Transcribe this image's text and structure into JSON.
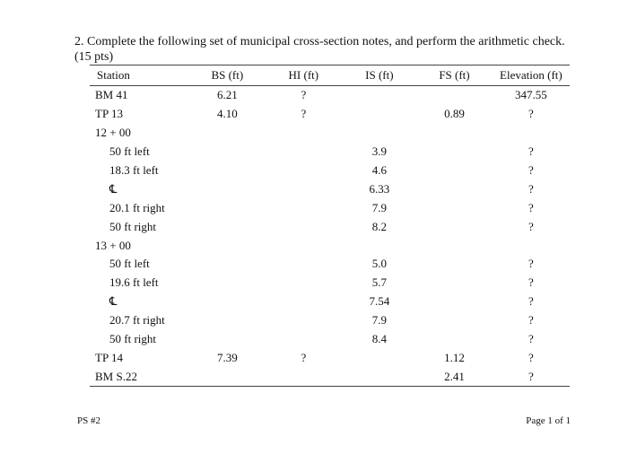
{
  "question": {
    "line1": "2. Complete the following set of municipal cross-section notes, and perform the arithmetic check.",
    "line2": "(15 pts)"
  },
  "table": {
    "headers": [
      "Station",
      "BS (ft)",
      "HI (ft)",
      "IS (ft)",
      "FS (ft)",
      "Elevation (ft)"
    ],
    "rows": [
      {
        "station": "BM 41",
        "indent": false,
        "bs": "6.21",
        "hi": "?",
        "is": "",
        "fs": "",
        "elev": "347.55"
      },
      {
        "station": "TP 13",
        "indent": false,
        "bs": "4.10",
        "hi": "?",
        "is": "",
        "fs": "0.89",
        "elev": "?"
      },
      {
        "station": "12 + 00",
        "indent": false,
        "bs": "",
        "hi": "",
        "is": "",
        "fs": "",
        "elev": ""
      },
      {
        "station": "50 ft left",
        "indent": true,
        "bs": "",
        "hi": "",
        "is": "3.9",
        "fs": "",
        "elev": "?"
      },
      {
        "station": "18.3 ft left",
        "indent": true,
        "bs": "",
        "hi": "",
        "is": "4.6",
        "fs": "",
        "elev": "?"
      },
      {
        "station": "℄",
        "indent": true,
        "bs": "",
        "hi": "",
        "is": "6.33",
        "fs": "",
        "elev": "?"
      },
      {
        "station": "20.1 ft right",
        "indent": true,
        "bs": "",
        "hi": "",
        "is": "7.9",
        "fs": "",
        "elev": "?"
      },
      {
        "station": "50 ft right",
        "indent": true,
        "bs": "",
        "hi": "",
        "is": "8.2",
        "fs": "",
        "elev": "?"
      },
      {
        "station": "13 + 00",
        "indent": false,
        "bs": "",
        "hi": "",
        "is": "",
        "fs": "",
        "elev": ""
      },
      {
        "station": "50 ft left",
        "indent": true,
        "bs": "",
        "hi": "",
        "is": "5.0",
        "fs": "",
        "elev": "?"
      },
      {
        "station": "19.6 ft left",
        "indent": true,
        "bs": "",
        "hi": "",
        "is": "5.7",
        "fs": "",
        "elev": "?"
      },
      {
        "station": "℄",
        "indent": true,
        "bs": "",
        "hi": "",
        "is": "7.54",
        "fs": "",
        "elev": "?"
      },
      {
        "station": "20.7 ft right",
        "indent": true,
        "bs": "",
        "hi": "",
        "is": "7.9",
        "fs": "",
        "elev": "?"
      },
      {
        "station": "50 ft right",
        "indent": true,
        "bs": "",
        "hi": "",
        "is": "8.4",
        "fs": "",
        "elev": "?"
      },
      {
        "station": "TP 14",
        "indent": false,
        "bs": "7.39",
        "hi": "?",
        "is": "",
        "fs": "1.12",
        "elev": "?"
      },
      {
        "station": "BM S.22",
        "indent": false,
        "bs": "",
        "hi": "",
        "is": "",
        "fs": "2.41",
        "elev": "?"
      }
    ]
  },
  "footer": {
    "left": "PS #2",
    "right": "Page 1 of 1"
  }
}
